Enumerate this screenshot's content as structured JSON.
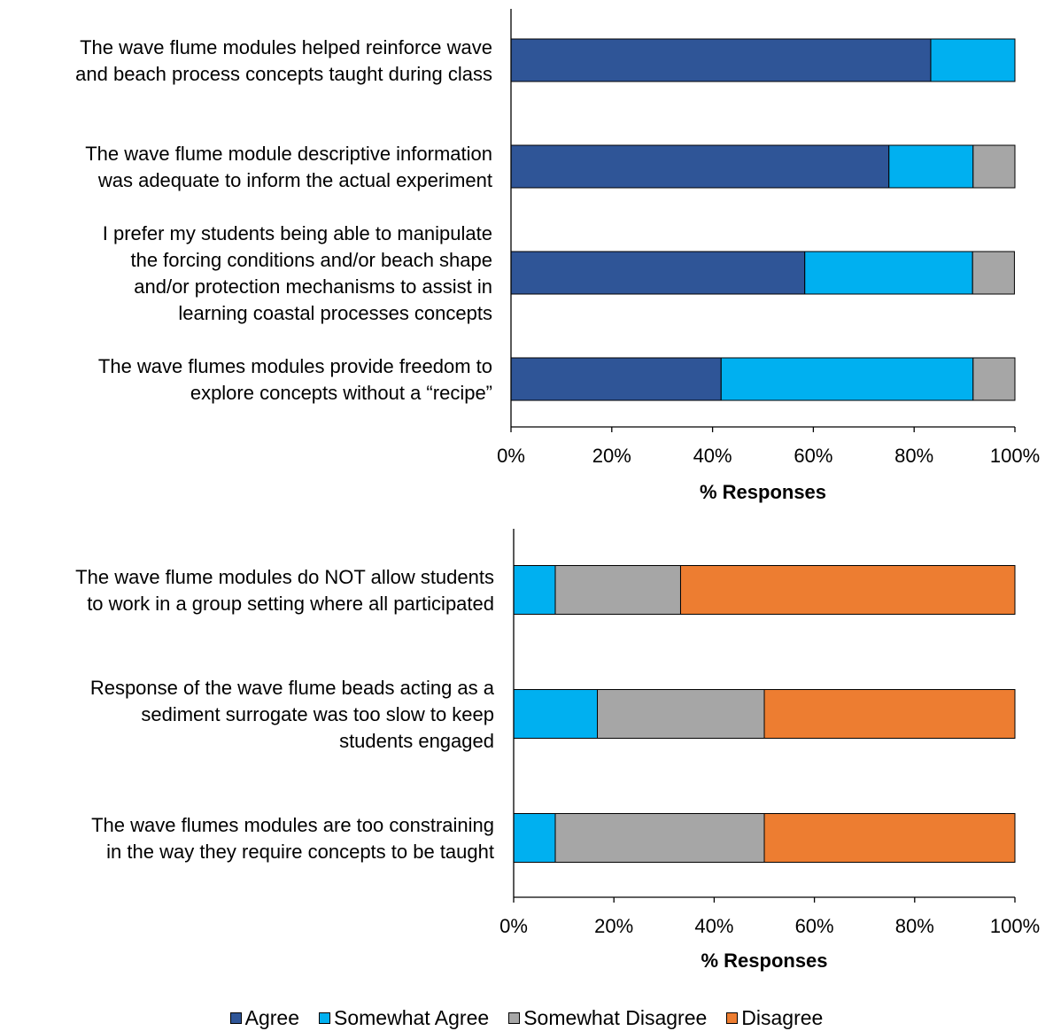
{
  "legend": {
    "agree": "Agree",
    "somewhat_agree": "Somewhat Agree",
    "somewhat_disagree": "Somewhat Disagree",
    "disagree": "Disagree"
  },
  "colors": {
    "agree": "#2F5597",
    "somewhat_agree": "#00B0F0",
    "somewhat_disagree": "#A6A6A6",
    "disagree": "#ED7D31"
  },
  "chart_data": [
    {
      "type": "bar",
      "orientation": "horizontal",
      "stacked": true,
      "xlabel": "% Responses",
      "xlim": [
        0,
        100
      ],
      "xticks": [
        "0%",
        "20%",
        "40%",
        "60%",
        "80%",
        "100%"
      ],
      "categories": [
        [
          "The wave flume modules helped reinforce wave",
          "and beach process concepts taught during class"
        ],
        [
          "The wave flume module descriptive information",
          "was adequate to inform the actual experiment"
        ],
        [
          "I prefer my students being able to manipulate",
          "the forcing conditions and/or beach shape",
          "and/or protection mechanisms to assist in",
          "learning coastal processes concepts"
        ],
        [
          "The wave flumes modules provide freedom to",
          "explore concepts without a “recipe”"
        ]
      ],
      "series": [
        {
          "name": "Agree",
          "values": [
            83.3,
            75.0,
            58.3,
            41.7
          ]
        },
        {
          "name": "Somewhat Agree",
          "values": [
            16.7,
            16.7,
            33.3,
            50.0
          ]
        },
        {
          "name": "Somewhat Disagree",
          "values": [
            0,
            8.3,
            8.3,
            8.3
          ]
        },
        {
          "name": "Disagree",
          "values": [
            0,
            0,
            0,
            0
          ]
        }
      ]
    },
    {
      "type": "bar",
      "orientation": "horizontal",
      "stacked": true,
      "xlabel": "% Responses",
      "xlim": [
        0,
        100
      ],
      "xticks": [
        "0%",
        "20%",
        "40%",
        "60%",
        "80%",
        "100%"
      ],
      "categories": [
        [
          "The wave flume modules do NOT allow students",
          "to work in a group setting where all participated"
        ],
        [
          "Response of the wave flume beads acting as a",
          "sediment surrogate was too slow to keep",
          "students engaged"
        ],
        [
          "The wave flumes modules are too constraining",
          "in the way they require concepts to be taught"
        ]
      ],
      "series": [
        {
          "name": "Agree",
          "values": [
            0,
            0,
            0
          ]
        },
        {
          "name": "Somewhat Agree",
          "values": [
            8.3,
            16.7,
            8.3
          ]
        },
        {
          "name": "Somewhat Disagree",
          "values": [
            25.0,
            33.3,
            41.7
          ]
        },
        {
          "name": "Disagree",
          "values": [
            66.7,
            50.0,
            50.0
          ]
        }
      ]
    }
  ]
}
